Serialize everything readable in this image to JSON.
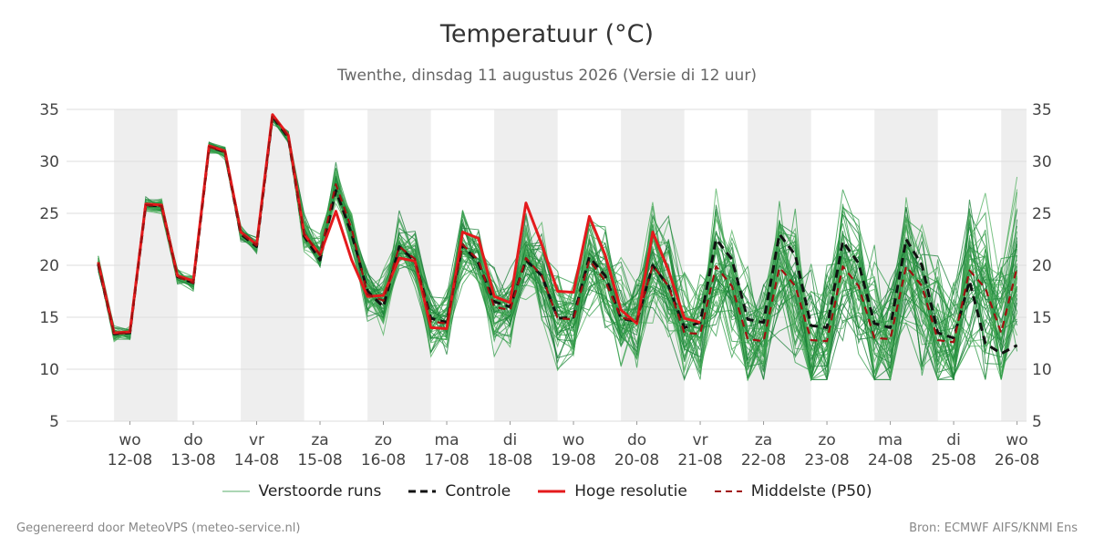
{
  "header": {
    "title": "Temperatuur (°C)",
    "subtitle": "Twenthe, dinsdag 11 augustus 2026 (Versie di 12 uur)"
  },
  "footer": {
    "left": "Gegenereerd door MeteoVPS (meteo-service.nl)",
    "right": "Bron: ECMWF AIFS/KNMI Ens"
  },
  "legend": {
    "perturbed": "Verstoorde runs",
    "control": "Controle",
    "hires": "Hoge resolutie",
    "median": "Middelste (P50)"
  },
  "colors": {
    "perturbed": "#2e9a45",
    "control": "#111111",
    "hires": "#e41a1c",
    "median": "#a01010",
    "shade": "#eeeeee",
    "grid": "#dddddd"
  },
  "chart_data": {
    "type": "line",
    "ylim": [
      5,
      35
    ],
    "yticks": [
      5,
      10,
      15,
      20,
      25,
      30,
      35
    ],
    "grid": true,
    "legend_position": "bottom",
    "x_unit": "6-hourly steps (index 0 = Tue 11-08 18:00)",
    "xlim": [
      -2,
      58.6
    ],
    "day_ticks": [
      {
        "index": 2,
        "day": "wo",
        "date": "12-08"
      },
      {
        "index": 6,
        "day": "do",
        "date": "13-08"
      },
      {
        "index": 10,
        "day": "vr",
        "date": "14-08"
      },
      {
        "index": 14,
        "day": "za",
        "date": "15-08"
      },
      {
        "index": 18,
        "day": "zo",
        "date": "16-08"
      },
      {
        "index": 22,
        "day": "ma",
        "date": "17-08"
      },
      {
        "index": 26,
        "day": "di",
        "date": "18-08"
      },
      {
        "index": 30,
        "day": "wo",
        "date": "19-08"
      },
      {
        "index": 34,
        "day": "do",
        "date": "20-08"
      },
      {
        "index": 38,
        "day": "vr",
        "date": "21-08"
      },
      {
        "index": 42,
        "day": "za",
        "date": "22-08"
      },
      {
        "index": 46,
        "day": "zo",
        "date": "23-08"
      },
      {
        "index": 50,
        "day": "ma",
        "date": "24-08"
      },
      {
        "index": 54,
        "day": "di",
        "date": "25-08"
      },
      {
        "index": 58,
        "day": "wo",
        "date": "26-08"
      }
    ],
    "shaded_days": [
      [
        1,
        5
      ],
      [
        9,
        13
      ],
      [
        17,
        21
      ],
      [
        25,
        29
      ],
      [
        33,
        37
      ],
      [
        41,
        45
      ],
      [
        49,
        53
      ],
      [
        57,
        58.6
      ]
    ],
    "series": [
      {
        "name": "Hoge resolutie",
        "style": "hires",
        "values": [
          20.3,
          13.5,
          13.6,
          25.9,
          25.8,
          19.0,
          18.5,
          31.5,
          31.0,
          23.2,
          22.0,
          34.5,
          32.5,
          23.0,
          21.0,
          25.2,
          20.5,
          17.0,
          17.1,
          20.7,
          20.4,
          14.0,
          13.9,
          23.2,
          22.6,
          17.0,
          16.4,
          26.0,
          22.0,
          17.5,
          17.4,
          24.7,
          21.0,
          15.7,
          14.4,
          23.2,
          19.5,
          14.9,
          14.5
        ]
      },
      {
        "name": "Controle",
        "style": "control",
        "values": [
          20.1,
          13.4,
          13.5,
          25.8,
          25.7,
          18.9,
          18.3,
          31.4,
          30.9,
          23.0,
          21.8,
          34.3,
          32.3,
          22.8,
          20.5,
          27.2,
          23.0,
          17.5,
          16.0,
          21.8,
          20.4,
          14.9,
          14.5,
          22.0,
          20.2,
          16.5,
          16.0,
          20.5,
          19.0,
          14.9,
          15.0,
          20.8,
          19.0,
          14.9,
          14.6,
          20.0,
          18.0,
          14.0,
          14.5,
          22.5,
          20.6,
          14.8,
          14.5,
          23.0,
          21.0,
          14.2,
          14.0,
          22.3,
          20.2,
          14.4,
          14.0,
          22.5,
          20.0,
          13.5,
          13.0,
          18.5,
          12.5,
          11.5,
          12.3
        ]
      },
      {
        "name": "Middelste (P50)",
        "style": "median",
        "values": [
          20.2,
          13.4,
          13.5,
          25.8,
          25.7,
          18.9,
          18.3,
          31.4,
          30.9,
          23.1,
          21.9,
          34.4,
          32.4,
          23.0,
          21.0,
          27.8,
          23.5,
          17.2,
          16.6,
          21.8,
          20.6,
          14.6,
          14.4,
          22.0,
          20.5,
          16.0,
          15.7,
          20.7,
          19.0,
          14.9,
          14.8,
          20.5,
          18.5,
          15.0,
          14.6,
          20.0,
          18.0,
          13.5,
          13.4,
          19.9,
          18.0,
          12.9,
          12.7,
          19.8,
          18.0,
          12.8,
          12.7,
          19.9,
          18.0,
          13.0,
          12.9,
          19.9,
          18.0,
          12.8,
          12.6,
          19.5,
          17.8,
          13.5,
          19.8
        ]
      }
    ]
  }
}
